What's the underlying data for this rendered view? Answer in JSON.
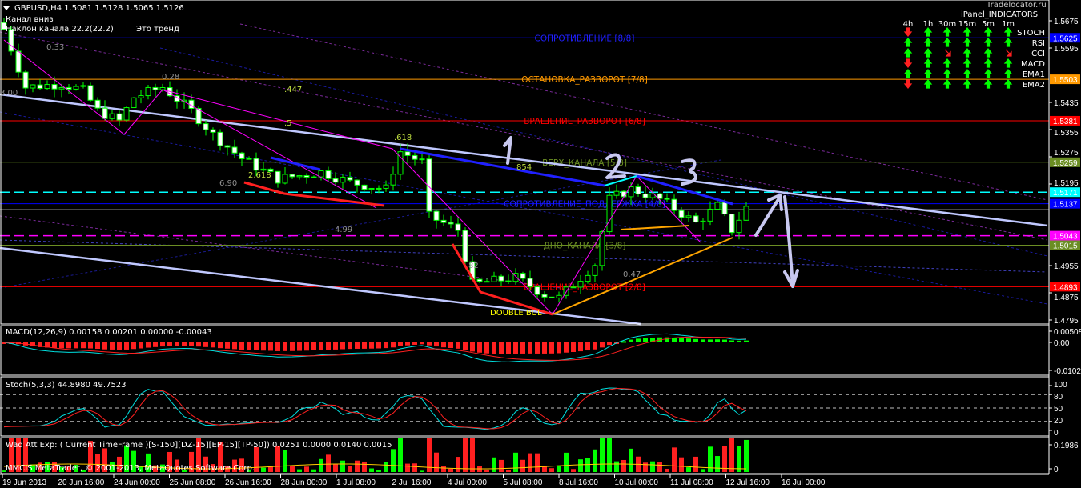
{
  "header": {
    "symbol_line": "GBPUSD,H4  1.5081 1.5128 1.5065 1.5126",
    "line2": "Канал  вниз",
    "line3": "Наклон канала 22.2(22.2)",
    "line3b": "Это тренд"
  },
  "ipanel": {
    "title": "iPanel_INDICATORS",
    "overlay": "Tradelocator.ru",
    "timeframes": [
      "4h",
      "1h",
      "30m",
      "15m",
      "5m",
      "1m"
    ],
    "rows": [
      {
        "name": "STOCH",
        "signals": [
          "down",
          "up",
          "up",
          "up",
          "up",
          "up"
        ]
      },
      {
        "name": "RSI",
        "signals": [
          "up",
          "up",
          "up",
          "up",
          "up",
          "up"
        ]
      },
      {
        "name": "CCI",
        "signals": [
          "up",
          "up",
          "down-right",
          "up",
          "up",
          "down-right"
        ]
      },
      {
        "name": "MACD",
        "signals": [
          "down",
          "up",
          "up",
          "up",
          "up",
          "up"
        ]
      },
      {
        "name": "EMA1",
        "signals": [
          "up",
          "up",
          "up",
          "up",
          "up",
          "up"
        ]
      },
      {
        "name": "EMA2",
        "signals": [
          "down",
          "up",
          "up",
          "up",
          "up",
          "up"
        ]
      }
    ],
    "up_color": "#00ff00",
    "down_color": "#ff2020"
  },
  "price_axis": {
    "ticks": [
      "1.5675",
      "1.5595",
      "1.5435",
      "1.5355",
      "1.5275",
      "1.5195",
      "1.4955",
      "1.4875",
      "1.4795"
    ],
    "tick_values": [
      1.5675,
      1.5595,
      1.5435,
      1.5355,
      1.5275,
      1.5195,
      1.4955,
      1.4875,
      1.4795
    ]
  },
  "levels": [
    {
      "price": 1.5625,
      "label": "СОПРОТИВЛЕНИЕ [8/8]",
      "box": "1.5625",
      "color": "#0000ff",
      "text_color": "#2020ff",
      "box_bg": "#0000ff",
      "box_fg": "#ffffff",
      "style": "solid"
    },
    {
      "price": 1.5503,
      "label": "ОСТАНОВКА_РАЗВОРОТ [7/8]",
      "box": "1.5503",
      "color": "#ff9900",
      "text_color": "#ff9900",
      "box_bg": "#ff9900",
      "box_fg": "#000000",
      "style": "solid"
    },
    {
      "price": 1.5381,
      "label": "ВРАЩЕНИЕ_РАЗВОРОТ [6/8]",
      "box": "1.5381",
      "color": "#ff0000",
      "text_color": "#ff0000",
      "box_bg": "#ff0000",
      "box_fg": "#000000",
      "style": "solid"
    },
    {
      "price": 1.5259,
      "label": "ВЕРХ_КАНАЛА [5/8]",
      "box": "1.5259",
      "color": "#6b8e23",
      "text_color": "#6b8e23",
      "box_bg": "#6b8e23",
      "box_fg": "#ffffff",
      "style": "solid"
    },
    {
      "price": 1.5171,
      "label": "",
      "box": "1.5171",
      "color": "#00ffff",
      "text_color": "#00ffff",
      "box_bg": "#00ffff",
      "box_fg": "#000000",
      "style": "dashed"
    },
    {
      "price": 1.5137,
      "label": "СОПРОТИВЛЕНИЕ_ПОДДЕРЖКА [4/8]",
      "box": "1.5137",
      "color": "#0000ff",
      "text_color": "#2020ff",
      "box_bg": "#0000ff",
      "box_fg": "#ffffff",
      "style": "solid"
    },
    {
      "price": 1.5043,
      "label": "",
      "box": "1.5043",
      "color": "#ff00ff",
      "text_color": "#ff00ff",
      "box_bg": "#ff00ff",
      "box_fg": "#000000",
      "style": "dashed"
    },
    {
      "price": 1.5015,
      "label": "ДНО_КАНАЛА [3/8]",
      "box": "1.5015",
      "color": "#6b8e23",
      "text_color": "#6b8e23",
      "box_bg": "#6b8e23",
      "box_fg": "#ffffff",
      "style": "solid"
    },
    {
      "price": 1.4893,
      "label": "ВРАЩЕНИЕ_РАЗВОРОТ [2/8]",
      "box": "1.4893",
      "color": "#ff0000",
      "text_color": "#ff0000",
      "box_bg": "#ff0000",
      "box_fg": "#000000",
      "style": "solid"
    }
  ],
  "fib_labels": [
    "0.33",
    "0.28",
    "3.00",
    ".447",
    ".5",
    ".618",
    "2.618",
    "6.90",
    "4.99",
    "854",
    "82",
    "0.47"
  ],
  "pattern_label": "DOUBLE  BUL",
  "annotations": [
    "1",
    "2",
    "3"
  ],
  "close_anchors": [
    [
      0,
      1.565
    ],
    [
      3,
      1.548
    ],
    [
      8,
      1.549
    ],
    [
      11,
      1.547
    ],
    [
      13,
      1.541
    ],
    [
      16,
      1.538
    ],
    [
      18,
      1.545
    ],
    [
      22,
      1.548
    ],
    [
      26,
      1.541
    ],
    [
      29,
      1.534
    ],
    [
      33,
      1.527
    ],
    [
      38,
      1.521
    ],
    [
      44,
      1.523
    ],
    [
      48,
      1.52
    ],
    [
      53,
      1.518
    ],
    [
      55,
      1.529
    ],
    [
      58,
      1.526
    ],
    [
      59,
      1.51
    ],
    [
      63,
      1.506
    ],
    [
      65,
      1.49
    ],
    [
      71,
      1.492
    ],
    [
      75,
      1.487
    ],
    [
      77,
      1.486
    ],
    [
      82,
      1.496
    ],
    [
      84,
      1.515
    ],
    [
      87,
      1.518
    ],
    [
      91,
      1.515
    ],
    [
      96,
      1.508
    ],
    [
      99,
      1.513
    ],
    [
      101,
      1.506
    ],
    [
      103,
      1.5126
    ]
  ],
  "macd": {
    "label": "MACD(12,26,9) 0.00158 0.00201 0.00000 -0.00043",
    "ticks": [
      "0.00508",
      "0.00",
      "-0.01027"
    ]
  },
  "stoch": {
    "label": "Stoch(5,3,3) 44.8980 49.7523",
    "ticks": [
      "100",
      "80",
      "50",
      "20",
      "0"
    ]
  },
  "wad": {
    "label": "Wad Att Exp: ( Current TimeFrame )[S-150][DZ-15][EP-15][TP-50]) 0.0251 0.0000 0.0140 0.0015",
    "ticks": [
      "0.1986",
      "0"
    ]
  },
  "copyright": "MMCIS MetaTrader, © 2001-2013, MetaQuotes Software Corp.",
  "time_axis": [
    "19 Jun 2013",
    "20 Jun 16:00",
    "24 Jun 00:00",
    "25 Jun 08:00",
    "26 Jun 16:00",
    "28 Jun 00:00",
    "1 Jul 08:00",
    "2 Jul 16:00",
    "4 Jul 00:00",
    "5 Jul 08:00",
    "8 Jul 16:00",
    "10 Jul 00:00",
    "11 Jul 08:00",
    "12 Jul 16:00",
    "16 Jul 00:00"
  ]
}
